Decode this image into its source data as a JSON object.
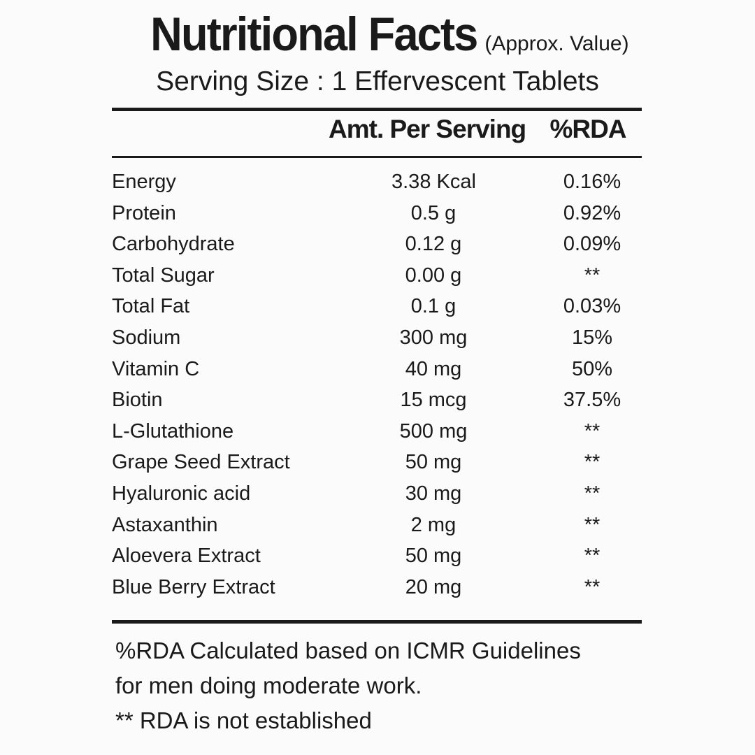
{
  "header": {
    "title": "Nutritional Facts",
    "subtitle": "(Approx. Value)",
    "serving": "Serving Size : 1 Effervescent Tablets"
  },
  "table": {
    "columns": [
      "Amt. Per Serving",
      "%RDA"
    ],
    "rows": [
      {
        "name": "Energy",
        "amount": "3.38 Kcal",
        "rda": "0.16%"
      },
      {
        "name": "Protein",
        "amount": "0.5 g",
        "rda": "0.92%"
      },
      {
        "name": "Carbohydrate",
        "amount": "0.12 g",
        "rda": "0.09%"
      },
      {
        "name": "Total Sugar",
        "amount": "0.00 g",
        "rda": "**"
      },
      {
        "name": "Total Fat",
        "amount": "0.1 g",
        "rda": "0.03%"
      },
      {
        "name": "Sodium",
        "amount": "300 mg",
        "rda": "15%"
      },
      {
        "name": "Vitamin C",
        "amount": "40 mg",
        "rda": "50%"
      },
      {
        "name": "Biotin",
        "amount": "15 mcg",
        "rda": "37.5%"
      },
      {
        "name": "L-Glutathione",
        "amount": "500 mg",
        "rda": "**"
      },
      {
        "name": "Grape Seed Extract",
        "amount": "50 mg",
        "rda": "**"
      },
      {
        "name": "Hyaluronic acid",
        "amount": "30 mg",
        "rda": "**"
      },
      {
        "name": "Astaxanthin",
        "amount": "2 mg",
        "rda": "**"
      },
      {
        "name": "Aloevera Extract",
        "amount": "50 mg",
        "rda": "**"
      },
      {
        "name": "Blue Berry Extract",
        "amount": "20 mg",
        "rda": "**"
      }
    ]
  },
  "footer": {
    "line1": "%RDA Calculated based on ICMR Guidelines",
    "line2": "for men doing moderate work.",
    "line3": "** RDA is not established"
  }
}
